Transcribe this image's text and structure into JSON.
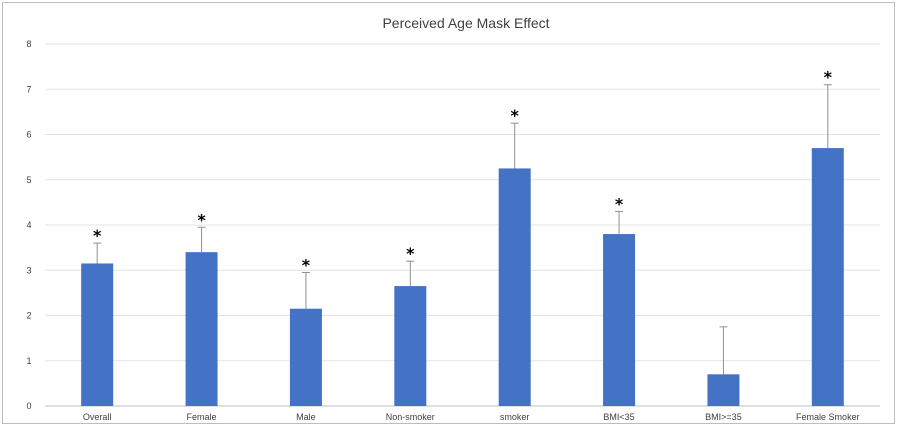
{
  "chart_data": {
    "type": "bar",
    "title": "Perceived Age Mask Effect",
    "xlabel": "",
    "ylabel": "",
    "ylim": [
      0,
      8
    ],
    "yticks": [
      0,
      1,
      2,
      3,
      4,
      5,
      6,
      7,
      8
    ],
    "grid": true,
    "legend": "none",
    "bar_color": "#4472c4",
    "error_color": "#909090",
    "significance_marker": "*",
    "categories": [
      "Overall",
      "Female",
      "Male",
      "Non-smoker",
      "smoker",
      "BMI<35",
      "BMI>=35",
      "Female Smoker"
    ],
    "values": [
      3.15,
      3.4,
      2.15,
      2.65,
      5.25,
      3.8,
      0.7,
      5.7
    ],
    "error_upper": [
      3.6,
      3.95,
      2.95,
      3.2,
      6.25,
      4.3,
      1.75,
      7.1
    ],
    "significant": [
      true,
      true,
      true,
      true,
      true,
      true,
      false,
      true
    ]
  }
}
